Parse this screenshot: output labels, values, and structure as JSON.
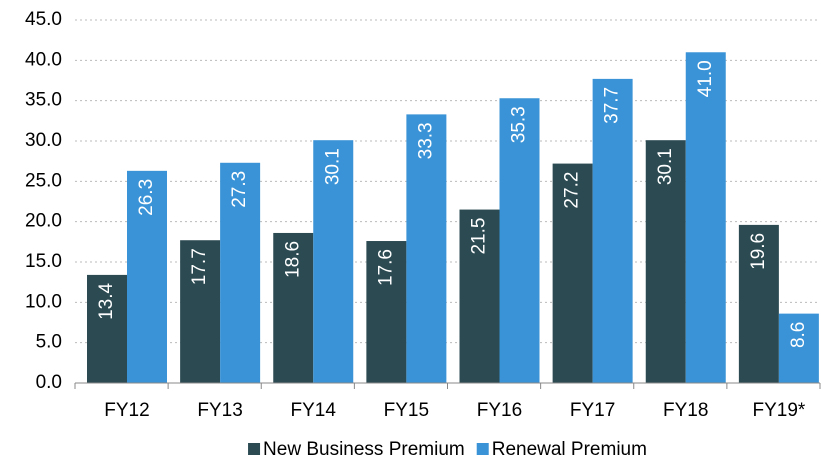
{
  "chart_data": {
    "type": "bar",
    "categories": [
      "FY12",
      "FY13",
      "FY14",
      "FY15",
      "FY16",
      "FY17",
      "FY18",
      "FY19*"
    ],
    "series": [
      {
        "name": "New Business Premium",
        "color": "#2b4a52",
        "values": [
          13.4,
          17.7,
          18.6,
          17.6,
          21.5,
          27.2,
          30.1,
          19.6
        ],
        "value_labels": [
          "13.4",
          "17.7",
          "18.6",
          "17.6",
          "21.5",
          "27.2",
          "30.1",
          "19.6"
        ]
      },
      {
        "name": "Renewal Premium",
        "color": "#3a93d6",
        "values": [
          26.3,
          27.3,
          30.1,
          33.3,
          35.3,
          37.7,
          41,
          8.6
        ],
        "value_labels": [
          "26.3",
          "27.3",
          "30.1",
          "33.3",
          "35.3",
          "37.7",
          "41.0",
          "8.6"
        ]
      }
    ],
    "ylim": [
      0,
      45
    ],
    "yticks": [
      {
        "value": 0,
        "label": "0.0"
      },
      {
        "value": 5,
        "label": "5.0"
      },
      {
        "value": 10,
        "label": "10.0"
      },
      {
        "value": 15,
        "label": "15.0"
      },
      {
        "value": 20,
        "label": "20.0"
      },
      {
        "value": 25,
        "label": "25.0"
      },
      {
        "value": 30,
        "label": "30.0"
      },
      {
        "value": 35,
        "label": "35.0"
      },
      {
        "value": 40,
        "label": "40.0"
      },
      {
        "value": 45,
        "label": "45.0"
      }
    ],
    "grid": true
  }
}
